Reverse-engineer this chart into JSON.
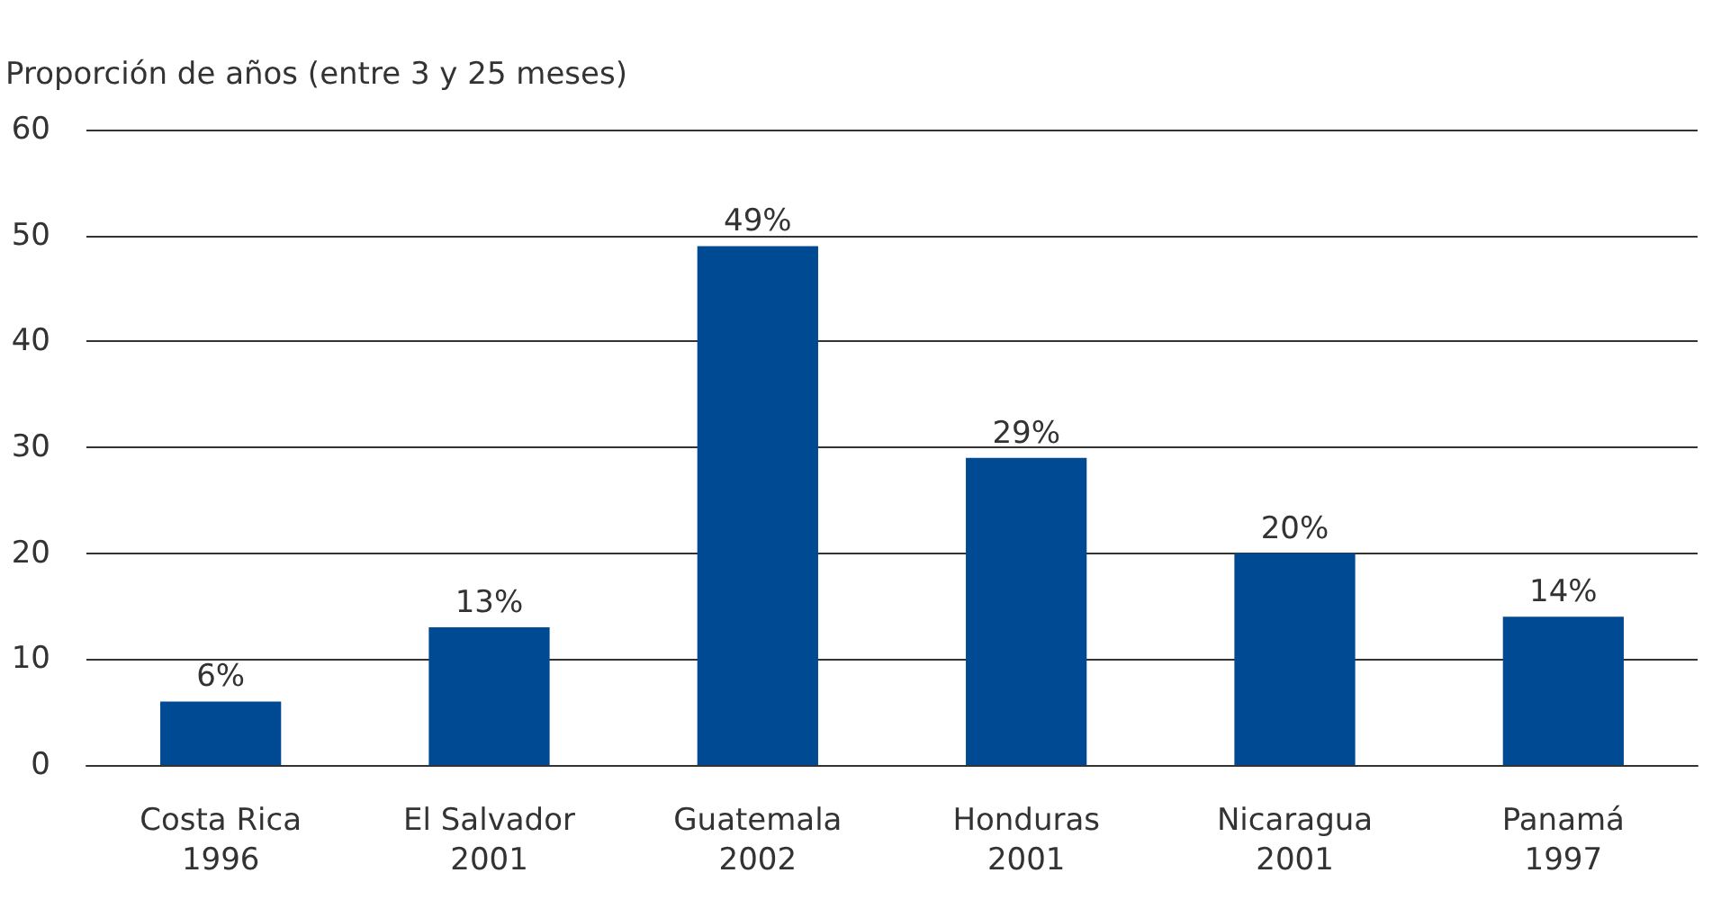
{
  "chart_data": {
    "type": "bar",
    "ylabel": "Proporción de años (entre 3 y 25 meses)",
    "categories": [
      "Costa Rica\n1996",
      "El Salvador\n2001",
      "Guatemala\n2002",
      "Honduras\n2001",
      "Nicaragua\n2001",
      "Panamá\n1997"
    ],
    "values": [
      6,
      13,
      49,
      29,
      20,
      14
    ],
    "value_labels": [
      "6%",
      "13%",
      "49%",
      "29%",
      "20%",
      "14%"
    ],
    "color": "#004a93",
    "ylim": [
      0,
      60
    ],
    "yticks": [
      0,
      10,
      20,
      30,
      40,
      50,
      60
    ],
    "grid": "y"
  }
}
